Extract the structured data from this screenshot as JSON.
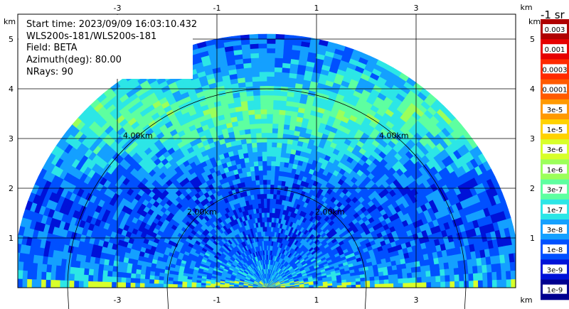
{
  "info": {
    "start_time": "Start time: 2023/09/09 16:03:10.432",
    "instrument": "WLS200s-181/WLS200s-181",
    "field": "Field: BETA",
    "azimuth": "Azimuth(deg): 80.00",
    "nrays": "NRays: 90"
  },
  "chart_data": {
    "type": "heatmap",
    "subtype": "lidar-rhi-scan",
    "x_unit": "km",
    "y_unit": "km",
    "xlim": [
      -5.0,
      5.0
    ],
    "ylim": [
      0.0,
      5.5
    ],
    "x_ticks": [
      -3,
      -1,
      1,
      3
    ],
    "y_ticks": [
      1,
      2,
      3,
      4,
      5
    ],
    "grid": true,
    "max_range_km": 5.1,
    "range_rings_km": [
      2.0,
      4.0
    ],
    "range_ring_labels": [
      "2.00km",
      "4.00km"
    ],
    "colorbar": {
      "title": "-1 sr",
      "labels": [
        "0.003",
        "0.001",
        "0.0003",
        "0.0001",
        "3e-5",
        "1e-5",
        "3e-6",
        "1e-6",
        "3e-7",
        "1e-7",
        "3e-8",
        "1e-8",
        "3e-9",
        "1e-9"
      ],
      "colors": [
        "#b00000",
        "#e60000",
        "#ff2a00",
        "#ff5a00",
        "#ff9900",
        "#ffd200",
        "#d8ff2a",
        "#9cff5a",
        "#5effa0",
        "#2ce6e6",
        "#14a0ff",
        "#0050ff",
        "#0012d8",
        "#000090"
      ]
    },
    "value_profile": [
      {
        "height_km": 0.2,
        "beta": "3e-8"
      },
      {
        "height_km": 1.0,
        "beta": "1e-8"
      },
      {
        "height_km": 2.0,
        "beta": "1e-8"
      },
      {
        "height_km": 2.5,
        "beta": "3e-8"
      },
      {
        "height_km": 3.0,
        "beta": "1e-7"
      },
      {
        "height_km": 3.5,
        "beta": "3e-7"
      },
      {
        "height_km": 4.0,
        "beta": "1e-7"
      },
      {
        "height_km": 4.5,
        "beta": "3e-8"
      },
      {
        "height_km": 5.0,
        "beta": "1e-8"
      }
    ]
  }
}
